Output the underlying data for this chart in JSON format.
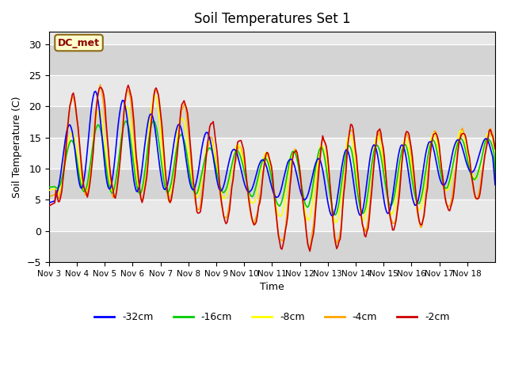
{
  "title": "Soil Temperatures Set 1",
  "xlabel": "Time",
  "ylabel": "Soil Temperature (C)",
  "ylim": [
    -5,
    32
  ],
  "yticks": [
    -5,
    0,
    5,
    10,
    15,
    20,
    25,
    30
  ],
  "annotation_text": "DC_met",
  "annotation_box_color": "#FFFFCC",
  "annotation_text_color": "#8B0000",
  "plot_bg_color": "#E8E8E8",
  "legend_labels": [
    "-32cm",
    "-16cm",
    "-8cm",
    "-4cm",
    "-2cm"
  ],
  "line_colors": [
    "#0000FF",
    "#00CC00",
    "#FFFF00",
    "#FFA500",
    "#CC0000"
  ],
  "xtick_labels": [
    "Nov 3",
    "Nov 4",
    "Nov 5",
    "Nov 6",
    "Nov 7",
    "Nov 8",
    "Nov 9",
    "Nov 10",
    "Nov 11",
    "Nov 12",
    "Nov 13",
    "Nov 14",
    "Nov 15",
    "Nov 16",
    "Nov 17",
    "Nov 18"
  ],
  "num_days": 16,
  "points_per_day": 24,
  "peaks_2cm": [
    22,
    22,
    24,
    23,
    23,
    20.5,
    17,
    14,
    12.5,
    12.5,
    15.5,
    17.5,
    16,
    16,
    16,
    16
  ],
  "troughs_2cm": [
    4,
    5.5,
    5.5,
    5,
    5,
    4,
    0.5,
    2.5,
    -3,
    -2.5,
    -3.5,
    -1.5,
    0,
    0,
    2.5,
    5
  ],
  "peaks_4cm": [
    20,
    22,
    23.5,
    22.5,
    22.5,
    20,
    14,
    13.5,
    12,
    13.5,
    15,
    17,
    15.5,
    15.5,
    16,
    16
  ],
  "troughs_4cm": [
    5,
    5.5,
    5.5,
    5,
    5,
    4,
    2,
    2.5,
    -2,
    -2.5,
    -2.5,
    -1,
    1,
    0,
    3,
    5.5
  ],
  "peaks_8cm": [
    7,
    18,
    20,
    20,
    22.5,
    17,
    14,
    14,
    12,
    13.5,
    14,
    16,
    15,
    15,
    16,
    16
  ],
  "troughs_8cm": [
    6,
    6,
    6,
    5.5,
    6,
    5,
    5,
    5,
    2,
    2,
    1,
    1,
    3,
    2,
    5.5,
    8
  ],
  "peaks_16cm": [
    7,
    17,
    17.5,
    18,
    18,
    15,
    13,
    13,
    11.5,
    13.5,
    13.5,
    14,
    14,
    14,
    15,
    15
  ],
  "troughs_16cm": [
    7,
    6,
    6,
    5.5,
    6,
    5.5,
    6,
    6,
    4,
    4,
    2.5,
    2,
    4,
    3.5,
    6,
    8
  ],
  "peaks_32cm": [
    4.5,
    24,
    23,
    21,
    18.5,
    17,
    16,
    12,
    11.5,
    12,
    12,
    14.5,
    14.5,
    14.5,
    15,
    15
  ],
  "troughs_32cm": [
    4.5,
    6,
    6,
    5.5,
    6,
    6,
    6,
    6,
    5,
    5,
    2,
    2,
    2,
    3,
    6.5,
    9
  ]
}
